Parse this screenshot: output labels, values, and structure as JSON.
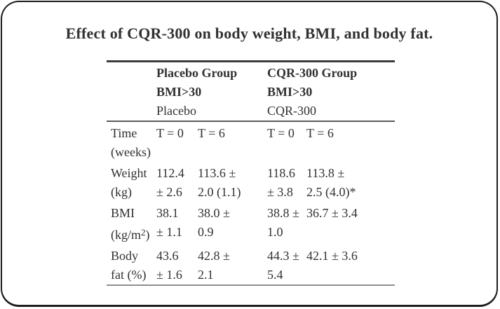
{
  "title": "Effect of CQR-300 on body weight, BMI, and body fat.",
  "colors": {
    "text": "#313131",
    "border": "#1d1d1d",
    "rule_dark": "#3c3c3c",
    "rule_mid": "#5a5a5a",
    "rule_light": "#8e8e8e",
    "background": "#ffffff"
  },
  "table": {
    "groups": [
      {
        "name": "Placebo Group",
        "criteria": "BMI>30",
        "treatment": "Placebo"
      },
      {
        "name": "CQR-300 Group",
        "criteria": "BMI>30",
        "treatment": "CQR-300"
      }
    ],
    "time_header": {
      "label": "Time\n(weeks)",
      "cells": [
        "T = 0",
        "T = 6",
        "T = 0",
        "T = 6"
      ]
    },
    "rows": [
      {
        "label": "Weight\n(kg)",
        "cells": [
          "112.4\n± 2.6",
          "113.6 ±\n2.0 (1.1)",
          "118.6\n± 3.8",
          "113.8 ±\n2.5 (4.0)*"
        ]
      },
      {
        "label_pre": "BMI\n(kg/m",
        "label_sup": "2",
        "label_post": ")",
        "cells": [
          "38.1\n± 1.1",
          "38.0 ±\n0.9",
          "38.8 ±\n1.0",
          "36.7 ± 3.4"
        ]
      },
      {
        "label": "Body\nfat (%)",
        "cells": [
          "43.6\n± 1.6",
          "42.8 ±\n2.1",
          "44.3 ±\n5.4",
          "42.1 ± 3.6"
        ]
      }
    ]
  }
}
